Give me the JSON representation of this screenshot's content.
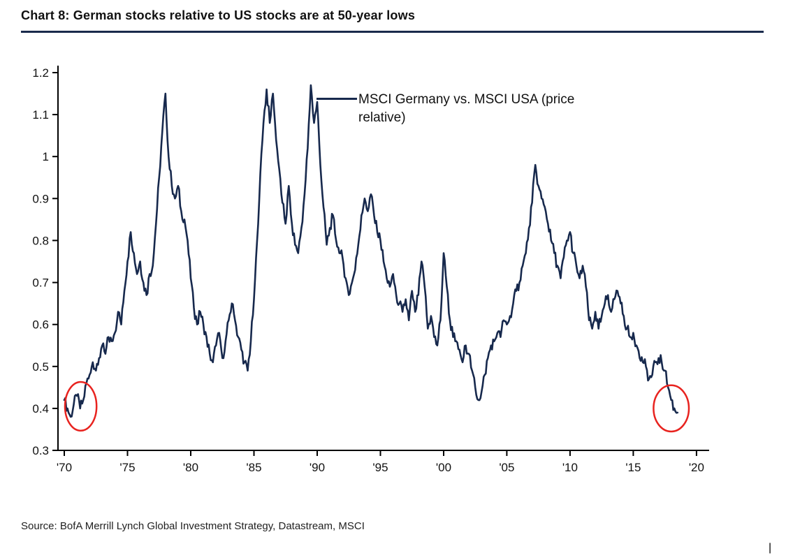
{
  "page": {
    "title": "Chart 8: German stocks relative to US stocks are at 50-year lows",
    "source": "Source: BofA Merrill Lynch Global Investment Strategy, Datastream, MSCI",
    "cursor_artifact": "|"
  },
  "chart_data": {
    "type": "line",
    "title": "Chart 8: German stocks relative to US stocks are at 50-year lows",
    "legend": {
      "label": "MSCI Germany vs. MSCI USA (price relative)",
      "position": "top-inside"
    },
    "line_color": "#17294d",
    "annotation_color": "#e8231f",
    "axis_color": "#000000",
    "xlim": [
      1969.5,
      2021
    ],
    "ylim": [
      0.3,
      1.2
    ],
    "grid": false,
    "x_ticks": {
      "values": [
        1970,
        1975,
        1980,
        1985,
        1990,
        1995,
        2000,
        2005,
        2010,
        2015,
        2020
      ],
      "labels": [
        "'70",
        "'75",
        "'80",
        "'85",
        "'90",
        "'95",
        "'00",
        "'05",
        "'10",
        "'15",
        "'20"
      ]
    },
    "y_ticks": {
      "values": [
        0.3,
        0.4,
        0.5,
        0.6,
        0.7,
        0.8,
        0.9,
        1,
        1.1,
        1.2
      ],
      "labels": [
        "0.3",
        "0.4",
        "0.5",
        "0.6",
        "0.7",
        "0.8",
        "0.9",
        "1",
        "1.1",
        "1.2"
      ]
    },
    "series": [
      {
        "name": "MSCI Germany vs. MSCI USA (price relative)",
        "x_start": 1970.0,
        "x_step": 0.25,
        "values": [
          0.42,
          0.4,
          0.38,
          0.41,
          0.43,
          0.4,
          0.42,
          0.46,
          0.48,
          0.51,
          0.49,
          0.52,
          0.55,
          0.53,
          0.57,
          0.56,
          0.58,
          0.63,
          0.6,
          0.68,
          0.75,
          0.82,
          0.77,
          0.72,
          0.75,
          0.7,
          0.67,
          0.72,
          0.74,
          0.84,
          0.95,
          1.06,
          1.15,
          1.0,
          0.93,
          0.9,
          0.93,
          0.87,
          0.85,
          0.8,
          0.71,
          0.64,
          0.6,
          0.63,
          0.6,
          0.57,
          0.53,
          0.51,
          0.55,
          0.58,
          0.52,
          0.56,
          0.61,
          0.65,
          0.61,
          0.57,
          0.54,
          0.51,
          0.49,
          0.56,
          0.66,
          0.8,
          0.96,
          1.08,
          1.16,
          1.08,
          1.15,
          1.04,
          0.97,
          0.89,
          0.84,
          0.93,
          0.84,
          0.79,
          0.77,
          0.83,
          0.91,
          1.02,
          1.17,
          1.08,
          1.13,
          0.98,
          0.88,
          0.79,
          0.83,
          0.86,
          0.8,
          0.77,
          0.76,
          0.71,
          0.67,
          0.7,
          0.73,
          0.79,
          0.86,
          0.9,
          0.87,
          0.91,
          0.86,
          0.82,
          0.8,
          0.75,
          0.71,
          0.69,
          0.72,
          0.67,
          0.65,
          0.63,
          0.66,
          0.61,
          0.68,
          0.63,
          0.67,
          0.75,
          0.69,
          0.59,
          0.62,
          0.57,
          0.55,
          0.61,
          0.77,
          0.69,
          0.61,
          0.57,
          0.56,
          0.54,
          0.51,
          0.55,
          0.53,
          0.49,
          0.45,
          0.42,
          0.44,
          0.48,
          0.52,
          0.55,
          0.56,
          0.58,
          0.57,
          0.61,
          0.6,
          0.62,
          0.65,
          0.68,
          0.7,
          0.74,
          0.77,
          0.83,
          0.89,
          0.98,
          0.93,
          0.9,
          0.88,
          0.84,
          0.8,
          0.77,
          0.74,
          0.71,
          0.76,
          0.8,
          0.82,
          0.77,
          0.74,
          0.71,
          0.74,
          0.69,
          0.61,
          0.59,
          0.63,
          0.59,
          0.62,
          0.65,
          0.67,
          0.63,
          0.66,
          0.68,
          0.65,
          0.62,
          0.59,
          0.57,
          0.58,
          0.55,
          0.52,
          0.51,
          0.5,
          0.47,
          0.48,
          0.51,
          0.52,
          0.51,
          0.49,
          0.45,
          0.42,
          0.4,
          0.39
        ]
      }
    ],
    "annotations": [
      {
        "type": "ellipse",
        "x": 1971.3,
        "y": 0.405,
        "rx_years": 1.25,
        "ry_value": 0.058,
        "note": "early-1970s low circled"
      },
      {
        "type": "ellipse",
        "x": 2018.0,
        "y": 0.4,
        "rx_years": 1.4,
        "ry_value": 0.055,
        "note": "2018 50-year low circled"
      }
    ]
  }
}
